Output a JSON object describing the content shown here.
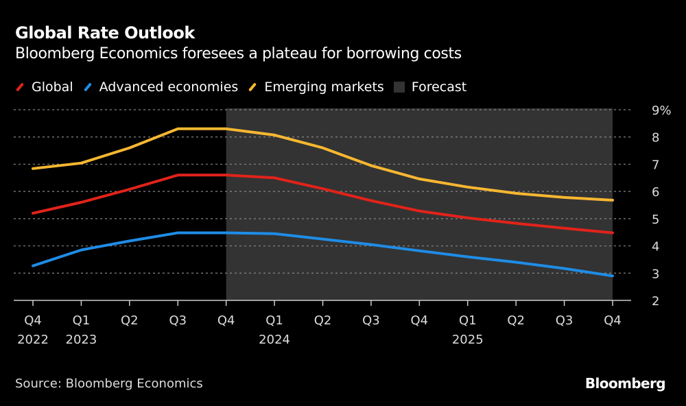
{
  "chart_data": {
    "type": "line",
    "title": "Global Rate Outlook",
    "subtitle": "Bloomberg Economics foresees a plateau for borrowing costs",
    "categories": [
      {
        "q": "Q4",
        "y": "2022"
      },
      {
        "q": "Q1",
        "y": "2023"
      },
      {
        "q": "Q2",
        "y": ""
      },
      {
        "q": "Q3",
        "y": ""
      },
      {
        "q": "Q4",
        "y": ""
      },
      {
        "q": "Q1",
        "y": "2024"
      },
      {
        "q": "Q2",
        "y": ""
      },
      {
        "q": "Q3",
        "y": ""
      },
      {
        "q": "Q4",
        "y": ""
      },
      {
        "q": "Q1",
        "y": "2025"
      },
      {
        "q": "Q2",
        "y": ""
      },
      {
        "q": "Q3",
        "y": ""
      },
      {
        "q": "Q4",
        "y": ""
      }
    ],
    "series": [
      {
        "name": "Global",
        "color": "#e2231a",
        "values": [
          5.2,
          5.6,
          6.08,
          6.6,
          6.6,
          6.5,
          6.1,
          5.66,
          5.28,
          5.03,
          4.83,
          4.65,
          4.48
        ]
      },
      {
        "name": "Advanced economies",
        "color": "#1f8ce6",
        "values": [
          3.27,
          3.85,
          4.18,
          4.48,
          4.48,
          4.45,
          4.25,
          4.05,
          3.82,
          3.6,
          3.4,
          3.17,
          2.9
        ]
      },
      {
        "name": "Emerging markets",
        "color": "#f7b731",
        "values": [
          6.84,
          7.04,
          7.6,
          8.3,
          8.3,
          8.07,
          7.6,
          6.95,
          6.46,
          6.16,
          5.93,
          5.78,
          5.68
        ]
      }
    ],
    "forecast": {
      "label": "Forecast",
      "start_index": 4,
      "end_index": 12,
      "color": "#333333"
    },
    "ylim": [
      2,
      9
    ],
    "yticks": [
      "9%",
      "8",
      "7",
      "6",
      "5",
      "4",
      "3",
      "2"
    ],
    "grid": true,
    "legend": "top-left"
  },
  "footer": {
    "source": "Source: Bloomberg Economics",
    "logo": "Bloomberg"
  }
}
